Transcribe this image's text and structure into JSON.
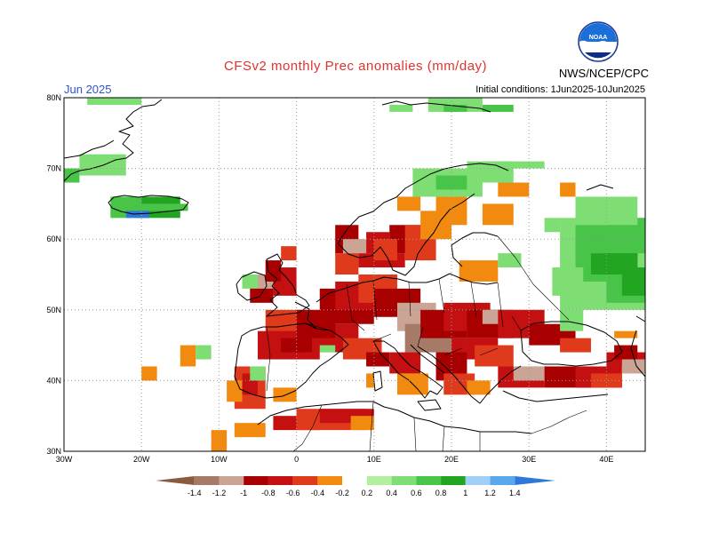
{
  "title": "CFSv2 monthly Prec anomalies (mm/day)",
  "month": "Jun 2025",
  "initial_conditions": "Initial conditions: 1Jun2025-10Jun2025",
  "agency": "NWS/NCEP/CPC",
  "logo_text": "NOAA",
  "map": {
    "region": "Europe",
    "lon_range": [
      -30,
      45
    ],
    "lat_range": [
      30,
      80
    ],
    "lat_labels": [
      "80N",
      "70N",
      "60N",
      "50N",
      "40N",
      "30N"
    ],
    "lon_labels": [
      "30W",
      "20W",
      "10W",
      "0",
      "10E",
      "20E",
      "30E",
      "40E"
    ],
    "grid": "dotted"
  },
  "legend": {
    "labels": [
      "-1.4",
      "-1.2",
      "-1",
      "-0.8",
      "-0.6",
      "-0.4",
      "-0.2",
      "0.2",
      "0.4",
      "0.6",
      "0.8",
      "1",
      "1.2",
      "1.4"
    ],
    "colors": [
      "#8c5a3f",
      "#a67a66",
      "#caa596",
      "#a80000",
      "#c41010",
      "#e03a1c",
      "#f28a10",
      "#ffffff",
      "#b0f0a0",
      "#7ede74",
      "#48c448",
      "#22a622",
      "#a0d0f8",
      "#58a8ee",
      "#2e78da"
    ]
  }
}
